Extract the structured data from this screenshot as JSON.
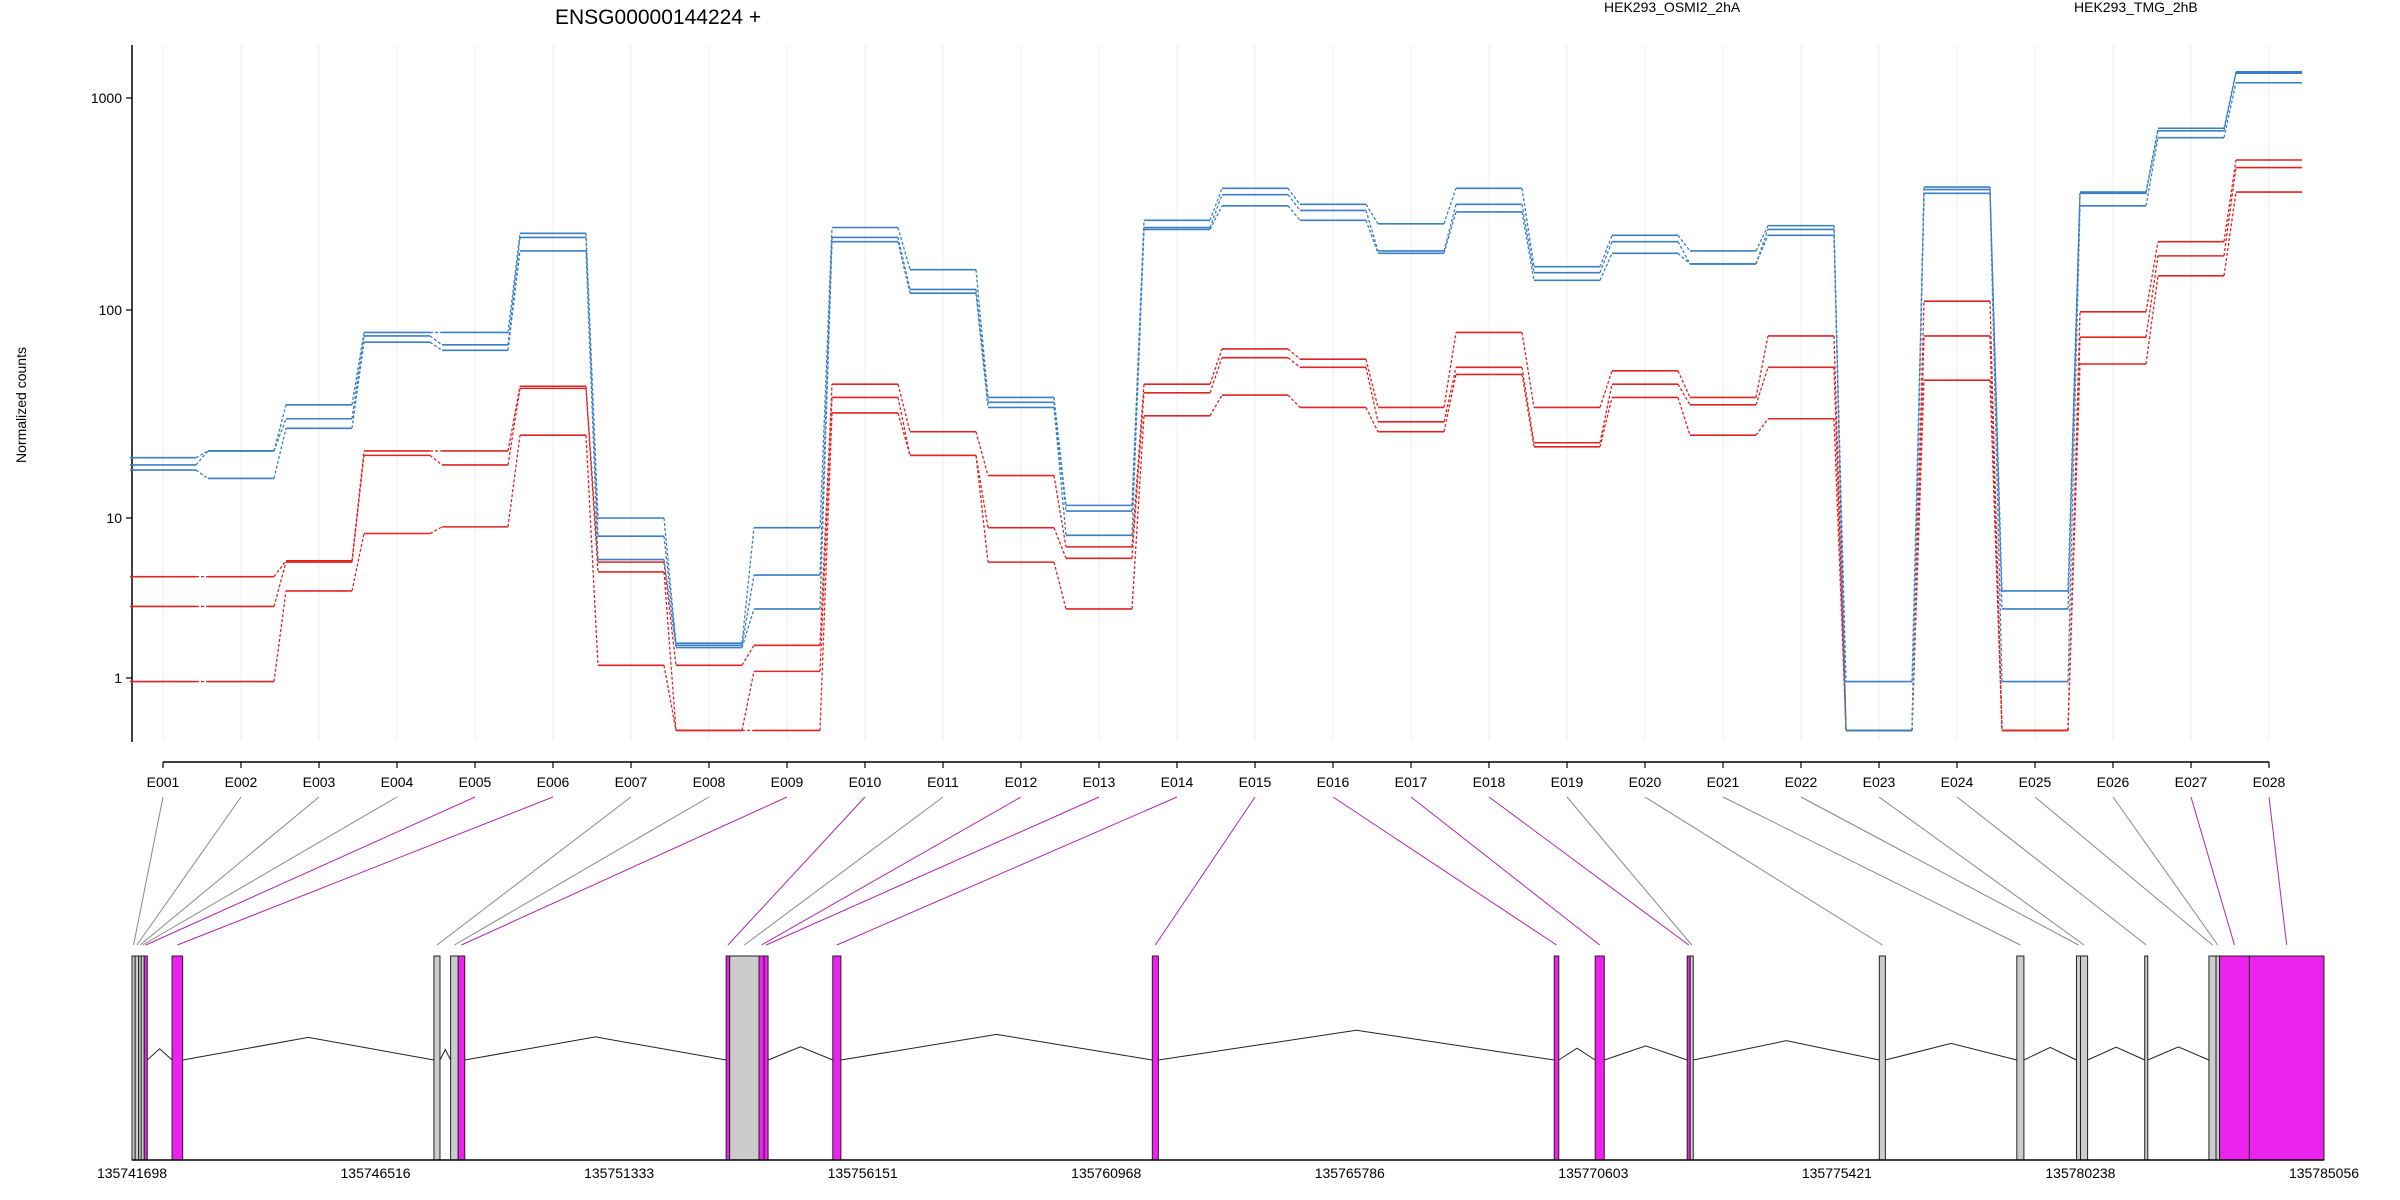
{
  "chart_data": {
    "type": "line",
    "title": "ENSG00000144224 +",
    "ylabel": "Normalized counts",
    "y_scale": "log",
    "ylim": [
      0.45,
      1800
    ],
    "y_ticks": [
      1,
      10,
      100,
      1000
    ],
    "y_tick_labels": [
      "1",
      "10",
      "100",
      "1000"
    ],
    "legend": [
      {
        "name": "HEK293_OSMI2_2hA",
        "color": "#e02424"
      },
      {
        "name": "HEK293_TMG_2hB",
        "color": "#3a7fc4"
      }
    ],
    "categories": [
      "E001",
      "E002",
      "E003",
      "E004",
      "E005",
      "E006",
      "E007",
      "E008",
      "E009",
      "E010",
      "E011",
      "E012",
      "E013",
      "E014",
      "E015",
      "E016",
      "E017",
      "E018",
      "E019",
      "E020",
      "E021",
      "E022",
      "E023",
      "E024",
      "E025",
      "E026",
      "E027",
      "E028"
    ],
    "series": [
      {
        "group": "HEK293_OSMI2_2hA",
        "color": "#e02424",
        "values": [
          4.3,
          4.3,
          5.4,
          21,
          21,
          43,
          5.3,
          1.2,
          1.6,
          44,
          26,
          16,
          6.6,
          44,
          65,
          58,
          34,
          78,
          34,
          51,
          38,
          75,
          0.47,
          110,
          0.47,
          98,
          210,
          510
        ]
      },
      {
        "group": "HEK293_OSMI2_2hA",
        "color": "#e02424",
        "values": [
          2.8,
          2.8,
          5.3,
          20,
          18,
          42,
          4.6,
          0.47,
          1.1,
          38,
          20,
          8.7,
          5.6,
          40,
          59,
          53,
          29,
          53,
          23,
          44,
          35,
          53,
          0.47,
          75,
          0.47,
          74,
          180,
          470
        ]
      },
      {
        "group": "HEK293_OSMI2_2hA",
        "color": "#e02424",
        "values": [
          0.95,
          0.95,
          3.5,
          8,
          8.8,
          25,
          1.2,
          0.47,
          0.47,
          32,
          20,
          5.3,
          2.7,
          31,
          39,
          34,
          26,
          49,
          22,
          38,
          25,
          30,
          0.47,
          46,
          0.47,
          55,
          145,
          360
        ]
      },
      {
        "group": "HEK293_TMG_2hB",
        "color": "#3a7fc4",
        "values": [
          19.5,
          21,
          35,
          78,
          78,
          230,
          10,
          1.65,
          8.7,
          245,
          155,
          38,
          11.5,
          265,
          375,
          315,
          255,
          375,
          160,
          225,
          190,
          250,
          0.47,
          380,
          3.5,
          360,
          720,
          1330
        ]
      },
      {
        "group": "HEK293_TMG_2hB",
        "color": "#3a7fc4",
        "values": [
          18,
          21,
          30,
          75,
          68,
          220,
          7.7,
          1.6,
          4.4,
          220,
          125,
          36,
          10.8,
          245,
          350,
          295,
          190,
          315,
          150,
          210,
          165,
          240,
          0.47,
          370,
          2.7,
          355,
          700,
          1310
        ]
      },
      {
        "group": "HEK293_TMG_2hB",
        "color": "#3a7fc4",
        "values": [
          17,
          15.5,
          27,
          70,
          64,
          190,
          5.5,
          1.55,
          2.7,
          210,
          120,
          34,
          7.8,
          240,
          310,
          265,
          185,
          290,
          138,
          185,
          165,
          225,
          0.95,
          355,
          0.95,
          310,
          650,
          1180
        ]
      }
    ],
    "genome_axis": {
      "tick_labels": [
        "135741698",
        "135746516",
        "135751333",
        "135756151",
        "135760968",
        "135765786",
        "135770603",
        "135775421",
        "135780238",
        "135785056"
      ],
      "start": 135741698,
      "end": 135785056
    },
    "exon_models": [
      {
        "exon": "E001",
        "start": 135741698,
        "end": 135741760,
        "highlight": false
      },
      {
        "exon": "E002",
        "start": 135741760,
        "end": 135741830,
        "highlight": false
      },
      {
        "exon": "E003",
        "start": 135741830,
        "end": 135741880,
        "highlight": false
      },
      {
        "exon": "E004",
        "start": 135741880,
        "end": 135741940,
        "highlight": false
      },
      {
        "exon": "E005",
        "start": 135741940,
        "end": 135742000,
        "highlight": true
      },
      {
        "exon": "E006",
        "start": 135742490,
        "end": 135742700,
        "highlight": true
      },
      {
        "exon": "E007",
        "start": 135747670,
        "end": 135747790,
        "highlight": false
      },
      {
        "exon": "E008",
        "start": 135748000,
        "end": 135748150,
        "highlight": false
      },
      {
        "exon": "E009",
        "start": 135748150,
        "end": 135748280,
        "highlight": true
      },
      {
        "exon": "E010",
        "start": 135753450,
        "end": 135753520,
        "highlight": true
      },
      {
        "exon": "E011",
        "start": 135753520,
        "end": 135754100,
        "highlight": false
      },
      {
        "exon": "E012",
        "start": 135754100,
        "end": 135754200,
        "highlight": true
      },
      {
        "exon": "E013",
        "start": 135754200,
        "end": 135754280,
        "highlight": true
      },
      {
        "exon": "E014",
        "start": 135755560,
        "end": 135755720,
        "highlight": true
      },
      {
        "exon": "E015",
        "start": 135761880,
        "end": 135762000,
        "highlight": true
      },
      {
        "exon": "E016",
        "start": 135769830,
        "end": 135769920,
        "highlight": true
      },
      {
        "exon": "E017",
        "start": 135770640,
        "end": 135770820,
        "highlight": true
      },
      {
        "exon": "E018",
        "start": 135772460,
        "end": 135772520,
        "highlight": true
      },
      {
        "exon": "E019",
        "start": 135772520,
        "end": 135772580,
        "highlight": false
      },
      {
        "exon": "E020",
        "start": 135776260,
        "end": 135776380,
        "highlight": false
      },
      {
        "exon": "E021",
        "start": 135778980,
        "end": 135779120,
        "highlight": false
      },
      {
        "exon": "E022",
        "start": 135780160,
        "end": 135780240,
        "highlight": false
      },
      {
        "exon": "E023",
        "start": 135780240,
        "end": 135780380,
        "highlight": false
      },
      {
        "exon": "E024",
        "start": 135781510,
        "end": 135781570,
        "highlight": false
      },
      {
        "exon": "E025",
        "start": 135782780,
        "end": 135782920,
        "highlight": false
      },
      {
        "exon": "E026",
        "start": 135782920,
        "end": 135782990,
        "highlight": false
      },
      {
        "exon": "E027",
        "start": 135782990,
        "end": 135783580,
        "highlight": true
      },
      {
        "exon": "E028",
        "start": 135783580,
        "end": 135785056,
        "highlight": true
      }
    ],
    "grid": "vertical",
    "legend_placement": "top-right"
  }
}
